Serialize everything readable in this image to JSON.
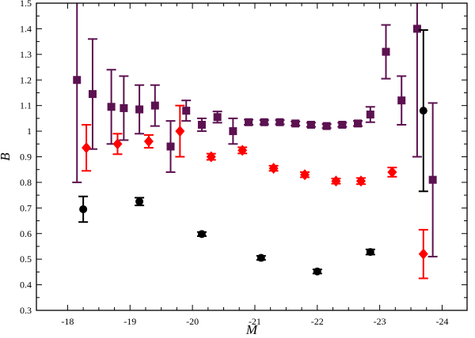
{
  "chart_data": {
    "type": "scatter",
    "xlabel": "M",
    "ylabel": "B",
    "xlim": [
      -17.5,
      -24.4
    ],
    "ylim": [
      0.3,
      1.5
    ],
    "x_reversed": true,
    "grid": false,
    "x_ticks": [
      {
        "value": -18,
        "label": "-18"
      },
      {
        "value": -19,
        "label": "-19"
      },
      {
        "value": -20,
        "label": "-20"
      },
      {
        "value": -21,
        "label": "-21"
      },
      {
        "value": -22,
        "label": "-22"
      },
      {
        "value": -23,
        "label": "-23"
      },
      {
        "value": -24,
        "label": "-24"
      }
    ],
    "y_ticks": [
      {
        "value": 0.3,
        "label": "0.3"
      },
      {
        "value": 0.4,
        "label": "0.4"
      },
      {
        "value": 0.5,
        "label": "0.5"
      },
      {
        "value": 0.6,
        "label": "0.6"
      },
      {
        "value": 0.7,
        "label": "0.7"
      },
      {
        "value": 0.8,
        "label": "0.8"
      },
      {
        "value": 0.9,
        "label": "0.9"
      },
      {
        "value": 1.0,
        "label": "1"
      },
      {
        "value": 1.1,
        "label": "1.1"
      },
      {
        "value": 1.2,
        "label": "1.2"
      },
      {
        "value": 1.3,
        "label": "1.3"
      },
      {
        "value": 1.4,
        "label": "1.4"
      },
      {
        "value": 1.5,
        "label": "1.5"
      }
    ],
    "series": [
      {
        "marker": "square",
        "color": "#5c1150",
        "points": [
          {
            "x": -18.15,
            "y": 1.2,
            "err": 0.4
          },
          {
            "x": -18.4,
            "y": 1.145,
            "err": 0.215
          },
          {
            "x": -18.7,
            "y": 1.095,
            "err": 0.145
          },
          {
            "x": -18.9,
            "y": 1.09,
            "err": 0.125
          },
          {
            "x": -19.15,
            "y": 1.085,
            "err": 0.095
          },
          {
            "x": -19.4,
            "y": 1.1,
            "err": 0.08
          },
          {
            "x": -19.65,
            "y": 0.94,
            "err": 0.1
          },
          {
            "x": -19.9,
            "y": 1.08,
            "err": 0.04
          },
          {
            "x": -20.15,
            "y": 1.025,
            "err": 0.025
          },
          {
            "x": -20.4,
            "y": 1.055,
            "err": 0.022
          },
          {
            "x": -20.65,
            "y": 1.0,
            "err": 0.05
          },
          {
            "x": -20.9,
            "y": 1.035,
            "err": 0.01
          },
          {
            "x": -21.15,
            "y": 1.035,
            "err": 0.008
          },
          {
            "x": -21.4,
            "y": 1.035,
            "err": 0.008
          },
          {
            "x": -21.65,
            "y": 1.03,
            "err": 0.008
          },
          {
            "x": -21.9,
            "y": 1.025,
            "err": 0.008
          },
          {
            "x": -22.15,
            "y": 1.02,
            "err": 0.008
          },
          {
            "x": -22.4,
            "y": 1.025,
            "err": 0.008
          },
          {
            "x": -22.65,
            "y": 1.03,
            "err": 0.01
          },
          {
            "x": -22.85,
            "y": 1.065,
            "err": 0.03
          },
          {
            "x": -23.1,
            "y": 1.31,
            "err": 0.105
          },
          {
            "x": -23.35,
            "y": 1.12,
            "err": 0.095
          },
          {
            "x": -23.6,
            "y": 1.4,
            "err": 0.5
          },
          {
            "x": -23.85,
            "y": 0.81,
            "err": 0.3
          }
        ]
      },
      {
        "marker": "diamond",
        "color": "#ff0000",
        "points": [
          {
            "x": -18.3,
            "y": 0.935,
            "err": 0.09
          },
          {
            "x": -18.8,
            "y": 0.95,
            "err": 0.04
          },
          {
            "x": -19.3,
            "y": 0.96,
            "err": 0.025
          },
          {
            "x": -19.8,
            "y": 1.0,
            "err": 0.1
          },
          {
            "x": -20.3,
            "y": 0.9,
            "err": 0.012
          },
          {
            "x": -20.8,
            "y": 0.925,
            "err": 0.012
          },
          {
            "x": -21.3,
            "y": 0.855,
            "err": 0.01
          },
          {
            "x": -21.8,
            "y": 0.83,
            "err": 0.01
          },
          {
            "x": -22.3,
            "y": 0.805,
            "err": 0.01
          },
          {
            "x": -22.7,
            "y": 0.805,
            "err": 0.012
          },
          {
            "x": -23.2,
            "y": 0.84,
            "err": 0.018
          },
          {
            "x": -23.7,
            "y": 0.52,
            "err": 0.095
          }
        ]
      },
      {
        "marker": "circle",
        "color": "#000000",
        "points": [
          {
            "x": -18.25,
            "y": 0.695,
            "err": 0.05
          },
          {
            "x": -19.15,
            "y": 0.725,
            "err": 0.015
          },
          {
            "x": -20.15,
            "y": 0.598,
            "err": 0.008
          },
          {
            "x": -21.1,
            "y": 0.505,
            "err": 0.008
          },
          {
            "x": -22.0,
            "y": 0.452,
            "err": 0.008
          },
          {
            "x": -22.85,
            "y": 0.528,
            "err": 0.01
          },
          {
            "x": -23.7,
            "y": 1.08,
            "err": 0.315
          }
        ]
      }
    ]
  }
}
